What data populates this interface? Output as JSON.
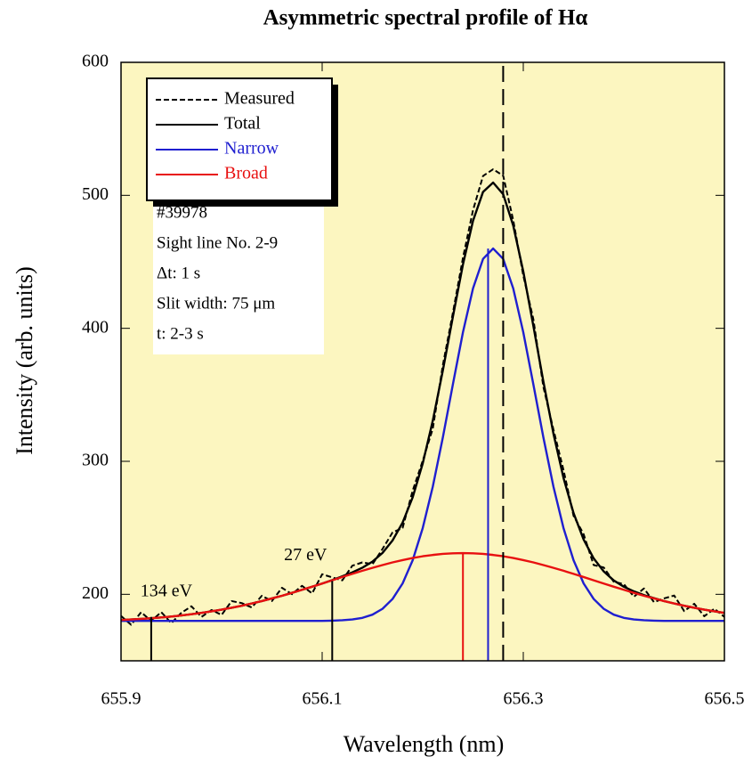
{
  "chart_data": {
    "type": "line",
    "title": "Asymmetric spectral profile of Hα",
    "xlabel": "Wavelength (nm)",
    "ylabel": "Intensity (arb. units)",
    "xlim": [
      655.9,
      656.5
    ],
    "xticks": [
      655.9,
      656.1,
      656.3,
      656.5
    ],
    "ylim": [
      150,
      600
    ],
    "yticks": [
      200,
      300,
      400,
      500,
      600
    ],
    "grid": false,
    "legend": "upper left",
    "x": [
      655.9,
      655.91,
      655.92,
      655.93,
      655.94,
      655.95,
      655.96,
      655.97,
      655.98,
      655.99,
      656.0,
      656.01,
      656.02,
      656.03,
      656.04,
      656.05,
      656.06,
      656.07,
      656.08,
      656.09,
      656.1,
      656.11,
      656.12,
      656.13,
      656.14,
      656.15,
      656.16,
      656.17,
      656.18,
      656.19,
      656.2,
      656.21,
      656.22,
      656.23,
      656.24,
      656.25,
      656.26,
      656.27,
      656.28,
      656.29,
      656.3,
      656.31,
      656.32,
      656.33,
      656.34,
      656.35,
      656.36,
      656.37,
      656.38,
      656.39,
      656.4,
      656.41,
      656.42,
      656.43,
      656.44,
      656.45,
      656.46,
      656.47,
      656.48,
      656.49,
      656.5
    ],
    "series": [
      {
        "name": "Measured",
        "color": "#000000",
        "dashed": true,
        "values": [
          183.7,
          177.1,
          186.5,
          180.0,
          186.6,
          178.3,
          186.1,
          191.0,
          183.0,
          188.2,
          184.5,
          194.9,
          193.4,
          190.1,
          198.9,
          194.9,
          204.9,
          200.1,
          206.4,
          200.7,
          215.1,
          212.7,
          210.5,
          221.5,
          224.0,
          222.6,
          234.1,
          246.5,
          249.9,
          277.9,
          300.4,
          324.5,
          372.3,
          411.7,
          453.0,
          488.8,
          514.6,
          519.6,
          514.8,
          481.3,
          439.7,
          406.9,
          355.9,
          323.8,
          293.5,
          259.0,
          245.2,
          222.0,
          220.2,
          209.4,
          207.7,
          198.2,
          204.4,
          194.1,
          196.9,
          199.1,
          187.4,
          192.9,
          183.5,
          189.2,
          183.0
        ]
      },
      {
        "name": "Total",
        "color": "#000000",
        "values": [
          180.7,
          181.1,
          181.5,
          182.0,
          182.6,
          183.3,
          184.1,
          185.0,
          186.0,
          187.2,
          188.5,
          189.9,
          191.4,
          193.1,
          194.9,
          196.9,
          198.9,
          201.1,
          203.4,
          205.7,
          208.1,
          210.7,
          213.5,
          216.5,
          220.0,
          224.6,
          231.1,
          240.5,
          253.9,
          272.9,
          298.4,
          330.5,
          368.3,
          408.7,
          448.0,
          480.8,
          502.6,
          509.6,
          500.8,
          477.3,
          442.7,
          401.9,
          359.9,
          320.8,
          287.5,
          261.0,
          241.2,
          227.0,
          217.2,
          210.4,
          205.7,
          202.2,
          199.4,
          197.1,
          194.9,
          193.1,
          191.4,
          189.9,
          188.5,
          187.2,
          186.0
        ]
      },
      {
        "name": "Narrow",
        "color": "#1f1fd0",
        "values": [
          180,
          180,
          180,
          180,
          180,
          180,
          180,
          180,
          180,
          180,
          180,
          180,
          180,
          180,
          180,
          180,
          180,
          180,
          180,
          180,
          180,
          180.2,
          180.5,
          181.1,
          182.3,
          184.7,
          189.1,
          196.5,
          208.2,
          225.6,
          249.8,
          280.9,
          317.9,
          357.9,
          397.0,
          430.0,
          452.2,
          460.0,
          452.2,
          430.0,
          397.0,
          357.9,
          317.9,
          280.9,
          249.8,
          225.6,
          208.2,
          196.5,
          189.1,
          184.7,
          182.3,
          181.1,
          180.5,
          180.2,
          180,
          180,
          180,
          180,
          180,
          180,
          180
        ]
      },
      {
        "name": "Broad",
        "color": "#e81010",
        "values": [
          180.7,
          181.1,
          181.5,
          182.0,
          182.6,
          183.3,
          184.1,
          185.0,
          186.0,
          187.2,
          188.5,
          189.9,
          191.4,
          193.1,
          194.9,
          196.9,
          198.9,
          201.1,
          203.4,
          205.7,
          208.1,
          210.5,
          213.0,
          215.4,
          217.7,
          219.9,
          222.0,
          224.0,
          225.7,
          227.3,
          228.6,
          229.6,
          230.4,
          230.8,
          231.0,
          230.8,
          230.4,
          229.6,
          228.6,
          227.3,
          225.7,
          224.0,
          222.0,
          219.9,
          217.7,
          215.4,
          213.0,
          210.5,
          208.1,
          205.7,
          203.4,
          201.1,
          198.9,
          196.9,
          194.9,
          193.1,
          191.4,
          189.9,
          188.5,
          187.2,
          186.0
        ]
      }
    ],
    "vlines": [
      {
        "x": 655.93,
        "y": 183,
        "label": "134 eV",
        "color": "#000000"
      },
      {
        "x": 656.11,
        "y": 210,
        "label": "27 eV",
        "color": "#000000"
      },
      {
        "x": 656.24,
        "y": 231,
        "color": "#e81010"
      },
      {
        "x": 656.265,
        "y": 460,
        "color": "#1f1fd0"
      },
      {
        "x": 656.28,
        "y": 600,
        "color": "#000000",
        "dashed": true
      }
    ],
    "annotations": [
      "#39978",
      "Sight line No. 2-9",
      "Δt: 1 s",
      "Slit width: 75 μm",
      "t: 2-3 s"
    ]
  }
}
